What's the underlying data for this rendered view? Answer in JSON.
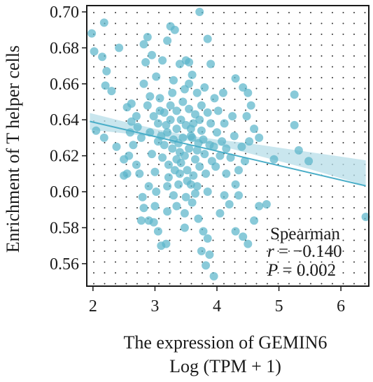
{
  "colors": {
    "point": "#5bb6cb",
    "line": "#4aaec8",
    "band": "#b7dde8",
    "grid": "#333333",
    "frame": "#1a1a1a"
  },
  "chart_data": {
    "type": "scatter",
    "xlabel_line1": "The expression of GEMIN6",
    "xlabel_line2": "Log (TPM + 1)",
    "ylabel": "Enrichment of T helper cells",
    "xlim": [
      1.9,
      6.45
    ],
    "ylim": [
      0.5475,
      0.7035
    ],
    "x_ticks": [
      2,
      3,
      4,
      5,
      6
    ],
    "y_ticks": [
      0.56,
      0.58,
      0.6,
      0.62,
      0.64,
      0.66,
      0.68,
      0.7
    ],
    "x_tick_labels": [
      "2",
      "3",
      "4",
      "5",
      "6"
    ],
    "y_tick_labels": [
      "0.56",
      "0.58",
      "0.60",
      "0.62",
      "0.64",
      "0.66",
      "0.68",
      "0.70"
    ],
    "grid": "dotted",
    "annotation": {
      "method": "Spearman",
      "r_label": "r",
      "r_value": " = −0.140",
      "p_label": "P",
      "p_value": " = 0.002"
    },
    "regression": {
      "x": [
        1.95,
        6.4
      ],
      "y": [
        0.6391,
        0.6033
      ]
    },
    "band": [
      [
        1.95,
        0.6345,
        0.6438
      ],
      [
        2.5,
        0.6325,
        0.639
      ],
      [
        3.0,
        0.6305,
        0.635
      ],
      [
        3.5,
        0.6285,
        0.6315
      ],
      [
        4.0,
        0.626,
        0.629
      ],
      [
        4.5,
        0.6215,
        0.627
      ],
      [
        5.0,
        0.617,
        0.6245
      ],
      [
        5.5,
        0.6125,
        0.622
      ],
      [
        6.0,
        0.6075,
        0.6195
      ],
      [
        6.4,
        0.6035,
        0.6175
      ]
    ],
    "points": [
      [
        1.98,
        0.688
      ],
      [
        2.18,
        0.694
      ],
      [
        2.02,
        0.678
      ],
      [
        2.15,
        0.675
      ],
      [
        2.42,
        0.68
      ],
      [
        2.22,
        0.667
      ],
      [
        2.2,
        0.659
      ],
      [
        2.3,
        0.656
      ],
      [
        2.05,
        0.634
      ],
      [
        2.18,
        0.63
      ],
      [
        2.38,
        0.625
      ],
      [
        2.5,
        0.618
      ],
      [
        2.5,
        0.609
      ],
      [
        2.55,
        0.61
      ],
      [
        2.58,
        0.62
      ],
      [
        2.55,
        0.647
      ],
      [
        2.62,
        0.649
      ],
      [
        2.7,
        0.642
      ],
      [
        2.72,
        0.636
      ],
      [
        2.78,
        0.63
      ],
      [
        2.82,
        0.682
      ],
      [
        2.85,
        0.672
      ],
      [
        2.88,
        0.686
      ],
      [
        2.95,
        0.676
      ],
      [
        2.82,
        0.66
      ],
      [
        2.92,
        0.653
      ],
      [
        3.02,
        0.664
      ],
      [
        3.12,
        0.673
      ],
      [
        3.08,
        0.645
      ],
      [
        2.98,
        0.642
      ],
      [
        3.25,
        0.692
      ],
      [
        3.32,
        0.69
      ],
      [
        3.2,
        0.684
      ],
      [
        3.4,
        0.671
      ],
      [
        3.5,
        0.673
      ],
      [
        3.55,
        0.672
      ],
      [
        3.6,
        0.665
      ],
      [
        3.72,
        0.7
      ],
      [
        3.85,
        0.685
      ],
      [
        3.9,
        0.671
      ],
      [
        4.3,
        0.663
      ],
      [
        4.42,
        0.658
      ],
      [
        4.5,
        0.655
      ],
      [
        4.55,
        0.648
      ],
      [
        4.48,
        0.642
      ],
      [
        4.6,
        0.635
      ],
      [
        4.68,
        0.63
      ],
      [
        4.52,
        0.628
      ],
      [
        4.4,
        0.625
      ],
      [
        4.45,
        0.617
      ],
      [
        4.35,
        0.612
      ],
      [
        4.3,
        0.604
      ],
      [
        4.15,
        0.61
      ],
      [
        4.22,
        0.619
      ],
      [
        4.92,
        0.618
      ],
      [
        5.25,
        0.654
      ],
      [
        5.25,
        0.637
      ],
      [
        5.32,
        0.623
      ],
      [
        5.48,
        0.617
      ],
      [
        6.4,
        0.586
      ],
      [
        2.8,
        0.597
      ],
      [
        2.82,
        0.591
      ],
      [
        2.78,
        0.584
      ],
      [
        2.9,
        0.584
      ],
      [
        2.98,
        0.583
      ],
      [
        3.05,
        0.578
      ],
      [
        3.0,
        0.592
      ],
      [
        3.1,
        0.57
      ],
      [
        3.18,
        0.571
      ],
      [
        3.02,
        0.6
      ],
      [
        3.2,
        0.603
      ],
      [
        3.3,
        0.598
      ],
      [
        3.35,
        0.592
      ],
      [
        3.48,
        0.588
      ],
      [
        3.48,
        0.58
      ],
      [
        3.6,
        0.594
      ],
      [
        3.7,
        0.585
      ],
      [
        3.78,
        0.578
      ],
      [
        3.85,
        0.574
      ],
      [
        3.75,
        0.567
      ],
      [
        3.82,
        0.559
      ],
      [
        3.95,
        0.553
      ],
      [
        3.88,
        0.565
      ],
      [
        4.05,
        0.588
      ],
      [
        4.12,
        0.598
      ],
      [
        4.2,
        0.593
      ],
      [
        4.35,
        0.598
      ],
      [
        4.3,
        0.578
      ],
      [
        4.42,
        0.575
      ],
      [
        4.5,
        0.571
      ],
      [
        4.68,
        0.592
      ],
      [
        4.8,
        0.593
      ],
      [
        4.6,
        0.584
      ],
      [
        3.58,
        0.604
      ],
      [
        3.65,
        0.599
      ],
      [
        3.2,
        0.589
      ],
      [
        3.4,
        0.61
      ],
      [
        3.0,
        0.611
      ],
      [
        2.9,
        0.603
      ],
      [
        3.5,
        0.597
      ],
      [
        3.05,
        0.638
      ],
      [
        3.1,
        0.631
      ],
      [
        3.15,
        0.626
      ],
      [
        3.2,
        0.633
      ],
      [
        3.25,
        0.64
      ],
      [
        3.3,
        0.629
      ],
      [
        3.35,
        0.635
      ],
      [
        3.4,
        0.622
      ],
      [
        3.45,
        0.63
      ],
      [
        3.5,
        0.637
      ],
      [
        3.55,
        0.624
      ],
      [
        3.6,
        0.63
      ],
      [
        3.65,
        0.618
      ],
      [
        3.7,
        0.627
      ],
      [
        3.75,
        0.634
      ],
      [
        3.8,
        0.621
      ],
      [
        3.12,
        0.619
      ],
      [
        3.22,
        0.615
      ],
      [
        3.32,
        0.612
      ],
      [
        3.42,
        0.616
      ],
      [
        3.52,
        0.612
      ],
      [
        3.62,
        0.609
      ],
      [
        3.72,
        0.614
      ],
      [
        3.82,
        0.61
      ],
      [
        3.92,
        0.617
      ],
      [
        3.95,
        0.625
      ],
      [
        4.0,
        0.633
      ],
      [
        4.05,
        0.62
      ],
      [
        3.9,
        0.638
      ],
      [
        3.85,
        0.644
      ],
      [
        3.75,
        0.648
      ],
      [
        3.65,
        0.643
      ],
      [
        3.55,
        0.646
      ],
      [
        3.45,
        0.65
      ],
      [
        3.35,
        0.645
      ],
      [
        3.25,
        0.648
      ],
      [
        3.15,
        0.644
      ],
      [
        3.05,
        0.628
      ],
      [
        2.95,
        0.621
      ],
      [
        2.92,
        0.633
      ],
      [
        3.28,
        0.624
      ],
      [
        3.38,
        0.627
      ],
      [
        3.48,
        0.62
      ],
      [
        3.58,
        0.631
      ],
      [
        3.68,
        0.623
      ],
      [
        3.18,
        0.637
      ],
      [
        3.42,
        0.64
      ],
      [
        3.62,
        0.638
      ],
      [
        3.78,
        0.629
      ],
      [
        3.88,
        0.626
      ],
      [
        3.98,
        0.614
      ],
      [
        4.08,
        0.628
      ],
      [
        4.12,
        0.638
      ],
      [
        4.02,
        0.645
      ],
      [
        3.96,
        0.652
      ],
      [
        3.68,
        0.655
      ],
      [
        3.48,
        0.657
      ],
      [
        3.28,
        0.655
      ],
      [
        3.08,
        0.652
      ],
      [
        2.88,
        0.648
      ],
      [
        3.3,
        0.662
      ],
      [
        3.55,
        0.66
      ],
      [
        3.8,
        0.658
      ],
      [
        4.1,
        0.655
      ],
      [
        4.25,
        0.642
      ],
      [
        4.28,
        0.631
      ],
      [
        4.15,
        0.624
      ],
      [
        3.22,
        0.608
      ],
      [
        3.38,
        0.604
      ],
      [
        3.52,
        0.606
      ],
      [
        3.68,
        0.603
      ],
      [
        3.85,
        0.6
      ],
      [
        2.7,
        0.615
      ],
      [
        2.65,
        0.626
      ],
      [
        2.6,
        0.633
      ],
      [
        2.75,
        0.61
      ],
      [
        2.62,
        0.639
      ],
      [
        3.35,
        0.618
      ],
      [
        3.58,
        0.635
      ],
      [
        3.72,
        0.64
      ]
    ]
  }
}
